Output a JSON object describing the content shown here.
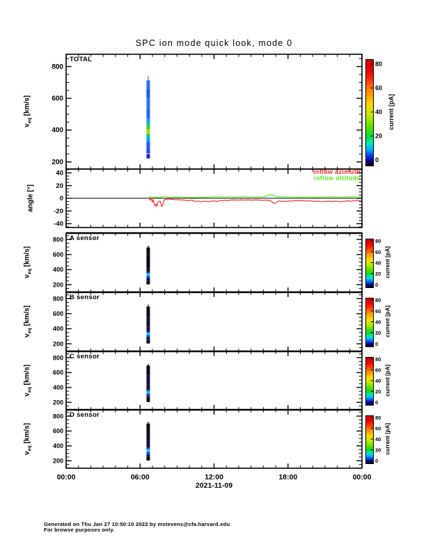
{
  "footer": {
    "line1": "Generated on Thu Jan 27 10:50:10 2022 by mstevens@cfa.harvard.edu",
    "line2": "For browse purposes only."
  },
  "chart_data": {
    "type": "multi-panel-timeseries",
    "title": "SPC ion mode quick look, mode 0",
    "x": {
      "range_hours": [
        0,
        24
      ],
      "tick_hours": [
        0,
        6,
        12,
        18,
        24
      ],
      "tick_labels": [
        "00:00",
        "06:00",
        "12:00",
        "18:00",
        "00:00"
      ],
      "minor_step_hours": 1,
      "date_label": "2021-11-09"
    },
    "ylabel_veq": {
      "main": "v",
      "sub": "eq",
      "unit": " [km/s]"
    },
    "ylabel_angle": "angle [°]",
    "colorbar": {
      "label": "current [pA]",
      "ticks": [
        0,
        20,
        40,
        60,
        80
      ],
      "vmin": -4,
      "vmax": 84,
      "colors_bottom_to_top": [
        "#000000",
        "#1133ee",
        "#00aaff",
        "#00dd44",
        "#99e800",
        "#ffd500",
        "#ff7700",
        "#ee0000"
      ]
    },
    "panels": [
      {
        "id": "total",
        "label": "TOTAL",
        "type": "spectrogram",
        "ylim": [
          155,
          877
        ],
        "yticks": [
          200,
          400,
          600,
          800
        ],
        "yminor": 50,
        "tick_font": 10,
        "has_colorbar": true,
        "streak": {
          "center_hour": 6.66,
          "segments": [
            [
              222,
              249,
              "#1a22bb",
              5
            ],
            [
              253,
              280,
              "#2244ee",
              5
            ],
            [
              280,
              328,
              "#2255ff",
              5
            ],
            [
              328,
              354,
              "#00aaee",
              5
            ],
            [
              354,
              376,
              "#00cc88",
              5
            ],
            [
              376,
              406,
              "#aadd00",
              5
            ],
            [
              406,
              437,
              "#33cc33",
              5
            ],
            [
              437,
              472,
              "#00aadd",
              5
            ],
            [
              472,
              537,
              "#2266ff",
              5
            ],
            [
              537,
              600,
              "#2a6fff",
              5
            ],
            [
              600,
              660,
              "#1e5ae8",
              5
            ],
            [
              660,
              713,
              "#2a6fff",
              5
            ],
            [
              713,
              743,
              "#77bbff",
              2
            ]
          ]
        }
      },
      {
        "id": "angle",
        "label": "",
        "type": "line",
        "ylim": [
          -46,
          46
        ],
        "yticks": [
          -40,
          -20,
          0,
          20,
          40
        ],
        "yminor": 5,
        "tick_font": 9.5,
        "has_colorbar": false,
        "zero_line": true,
        "series": [
          {
            "name": "inflow azimuth",
            "color": "#ff2222",
            "points": [
              [
                6.7,
                0.5
              ],
              [
                6.8,
                -3
              ],
              [
                6.9,
                -1
              ],
              [
                7.0,
                -6
              ],
              [
                7.05,
                -2
              ],
              [
                7.1,
                -5
              ],
              [
                7.2,
                -12
              ],
              [
                7.3,
                -9
              ],
              [
                7.35,
                -12.5
              ],
              [
                7.45,
                -6
              ],
              [
                7.55,
                -4.5
              ],
              [
                7.65,
                -5
              ],
              [
                7.75,
                -13
              ],
              [
                7.85,
                -10
              ],
              [
                7.95,
                -3
              ],
              [
                8.1,
                -1.5
              ],
              [
                8.3,
                -1
              ],
              [
                8.5,
                -2
              ],
              [
                8.7,
                -1.5
              ],
              [
                8.9,
                -2.5
              ],
              [
                9.1,
                -2
              ],
              [
                9.3,
                -3
              ],
              [
                9.5,
                -2.5
              ],
              [
                9.7,
                -3.5
              ],
              [
                9.9,
                -4
              ],
              [
                10.1,
                -3
              ],
              [
                10.3,
                -3.5
              ],
              [
                10.5,
                -5
              ],
              [
                10.7,
                -4
              ],
              [
                10.9,
                -5.5
              ],
              [
                11.1,
                -5
              ],
              [
                11.3,
                -4.5
              ],
              [
                11.5,
                -5.5
              ],
              [
                11.7,
                -5
              ],
              [
                11.9,
                -4
              ],
              [
                12.1,
                -4.5
              ],
              [
                12.3,
                -5
              ],
              [
                12.5,
                -3.5
              ],
              [
                12.7,
                -4
              ],
              [
                12.9,
                -3
              ],
              [
                13.1,
                -4
              ],
              [
                13.3,
                -3
              ],
              [
                13.6,
                -2.5
              ],
              [
                13.9,
                -3
              ],
              [
                14.2,
                -2.5
              ],
              [
                14.5,
                -3
              ],
              [
                14.8,
                -2.5
              ],
              [
                15.1,
                -3
              ],
              [
                15.4,
                -2.5
              ],
              [
                15.7,
                -3
              ],
              [
                16.0,
                -3.5
              ],
              [
                16.3,
                -3
              ],
              [
                16.6,
                -4
              ],
              [
                16.8,
                -7.5
              ],
              [
                17.0,
                -8
              ],
              [
                17.15,
                -5
              ],
              [
                17.3,
                -4
              ],
              [
                17.5,
                -5
              ],
              [
                17.7,
                -4.5
              ],
              [
                17.9,
                -5
              ],
              [
                18.1,
                -4
              ],
              [
                18.3,
                -4.5
              ],
              [
                18.6,
                -3.5
              ],
              [
                18.9,
                -4
              ],
              [
                19.2,
                -3.5
              ],
              [
                19.5,
                -4.5
              ],
              [
                19.8,
                -4
              ],
              [
                20.1,
                -5
              ],
              [
                20.4,
                -4.5
              ],
              [
                20.7,
                -5.5
              ],
              [
                21.0,
                -5
              ],
              [
                21.3,
                -4.5
              ],
              [
                21.6,
                -5
              ],
              [
                21.9,
                -4.5
              ],
              [
                22.2,
                -5.5
              ],
              [
                22.5,
                -5
              ],
              [
                22.8,
                -4
              ],
              [
                23.1,
                -4.5
              ],
              [
                23.4,
                -4
              ],
              [
                23.7,
                -3.5
              ],
              [
                24.0,
                -4.5
              ]
            ]
          },
          {
            "name": "inflow attitude",
            "color": "#55ee11",
            "points": [
              [
                6.7,
                1.5
              ],
              [
                6.9,
                2.5
              ],
              [
                7.1,
                1.5
              ],
              [
                7.3,
                2
              ],
              [
                7.5,
                1
              ],
              [
                7.7,
                1.5
              ],
              [
                7.9,
                3
              ],
              [
                8.1,
                2.5
              ],
              [
                8.4,
                1.5
              ],
              [
                8.7,
                2
              ],
              [
                9.0,
                1.5
              ],
              [
                9.3,
                2
              ],
              [
                9.6,
                1.5
              ],
              [
                9.9,
                1
              ],
              [
                10.2,
                1.5
              ],
              [
                10.5,
                1
              ],
              [
                10.8,
                1.5
              ],
              [
                11.1,
                2
              ],
              [
                11.4,
                1.5
              ],
              [
                11.7,
                2
              ],
              [
                12.0,
                2.5
              ],
              [
                12.3,
                2
              ],
              [
                12.6,
                2.5
              ],
              [
                12.9,
                2
              ],
              [
                13.2,
                2.5
              ],
              [
                13.5,
                2
              ],
              [
                13.8,
                2
              ],
              [
                14.1,
                2.5
              ],
              [
                14.4,
                2
              ],
              [
                14.7,
                2.5
              ],
              [
                15.0,
                2
              ],
              [
                15.3,
                2
              ],
              [
                15.6,
                2.5
              ],
              [
                15.9,
                2
              ],
              [
                16.2,
                3
              ],
              [
                16.45,
                5.5
              ],
              [
                16.6,
                5
              ],
              [
                16.75,
                5.5
              ],
              [
                16.9,
                4
              ],
              [
                17.05,
                2
              ],
              [
                17.3,
                2.5
              ],
              [
                17.6,
                2
              ],
              [
                17.9,
                2.5
              ],
              [
                18.2,
                2
              ],
              [
                18.5,
                2
              ],
              [
                18.8,
                1.5
              ],
              [
                19.1,
                2
              ],
              [
                19.4,
                1.5
              ],
              [
                19.7,
                2
              ],
              [
                20.0,
                2
              ],
              [
                20.3,
                1.5
              ],
              [
                20.6,
                2
              ],
              [
                20.9,
                2
              ],
              [
                21.2,
                2.5
              ],
              [
                21.5,
                2
              ],
              [
                21.8,
                2.5
              ],
              [
                22.1,
                2
              ],
              [
                22.4,
                2
              ],
              [
                22.7,
                2.5
              ],
              [
                23.0,
                2
              ],
              [
                23.3,
                2.5
              ],
              [
                23.6,
                2
              ],
              [
                23.8,
                2.5
              ],
              [
                24.0,
                2
              ]
            ]
          }
        ]
      },
      {
        "id": "sensor_a",
        "label": "A sensor",
        "type": "spectrogram",
        "ylim": [
          100,
          885
        ],
        "yticks": [
          200,
          400,
          600,
          800
        ],
        "yminor": 50,
        "tick_font": 9,
        "has_colorbar": true,
        "streak": {
          "center_hour": 6.66,
          "segments": [
            [
              204,
              250,
              "#06060b",
              5
            ],
            [
              250,
              285,
              "#0d1242",
              5
            ],
            [
              285,
              315,
              "#1a35d0",
              5
            ],
            [
              315,
              352,
              "#00c0f8",
              5
            ],
            [
              352,
              372,
              "#1530a0",
              5
            ],
            [
              372,
              420,
              "#1a1038",
              5
            ],
            [
              420,
              600,
              "#0a0915",
              5
            ],
            [
              600,
              694,
              "#0c0a18",
              5
            ],
            [
              694,
              716,
              "#8a1a28",
              2
            ]
          ]
        }
      },
      {
        "id": "sensor_b",
        "label": "B sensor",
        "type": "spectrogram",
        "ylim": [
          100,
          885
        ],
        "yticks": [
          200,
          400,
          600,
          800
        ],
        "yminor": 50,
        "tick_font": 9,
        "has_colorbar": true,
        "streak": {
          "center_hour": 6.66,
          "segments": [
            [
              204,
              250,
              "#06060b",
              5
            ],
            [
              250,
              285,
              "#0d1242",
              5
            ],
            [
              285,
              315,
              "#1a35d0",
              5
            ],
            [
              315,
              352,
              "#00c0f8",
              5
            ],
            [
              352,
              372,
              "#2a2090",
              5
            ],
            [
              372,
              430,
              "#201048",
              5
            ],
            [
              430,
              560,
              "#170d30",
              5
            ],
            [
              560,
              694,
              "#0c0a18",
              5
            ],
            [
              694,
              720,
              "#a02040",
              2
            ]
          ]
        }
      },
      {
        "id": "sensor_c",
        "label": "C sensor",
        "type": "spectrogram",
        "ylim": [
          100,
          885
        ],
        "yticks": [
          200,
          400,
          600,
          800
        ],
        "yminor": 50,
        "tick_font": 9,
        "has_colorbar": true,
        "streak": {
          "center_hour": 6.66,
          "segments": [
            [
              204,
              252,
              "#06060b",
              5
            ],
            [
              252,
              285,
              "#0c1038",
              5
            ],
            [
              285,
              318,
              "#1a35d0",
              5
            ],
            [
              318,
              355,
              "#00c0f8",
              5
            ],
            [
              355,
              375,
              "#202898",
              5
            ],
            [
              375,
              440,
              "#190e34",
              5
            ],
            [
              440,
              560,
              "#1d1040",
              5
            ],
            [
              560,
              694,
              "#0c0a18",
              5
            ],
            [
              694,
              714,
              "#901a30",
              2
            ]
          ]
        }
      },
      {
        "id": "sensor_d",
        "label": "D sensor",
        "type": "spectrogram",
        "ylim": [
          100,
          885
        ],
        "yticks": [
          200,
          400,
          600,
          800
        ],
        "yminor": 50,
        "tick_font": 9,
        "has_colorbar": true,
        "streak": {
          "center_hour": 6.66,
          "segments": [
            [
              204,
              252,
              "#06060b",
              5
            ],
            [
              252,
              285,
              "#0c1038",
              5
            ],
            [
              285,
              318,
              "#2040dd",
              5
            ],
            [
              318,
              358,
              "#00c8ff",
              5
            ],
            [
              358,
              380,
              "#2535b0",
              5
            ],
            [
              380,
              470,
              "#1b0f38",
              5
            ],
            [
              470,
              600,
              "#150c2c",
              5
            ],
            [
              600,
              700,
              "#0c0a18",
              5
            ],
            [
              700,
              722,
              "#a02038",
              2
            ]
          ]
        }
      }
    ]
  }
}
